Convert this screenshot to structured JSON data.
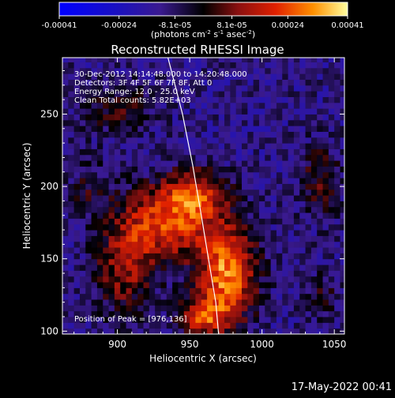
{
  "chart_data": {
    "type": "heatmap",
    "title": "Reconstructed RHESSI Image",
    "xlabel": "Heliocentric X (arcsec)",
    "ylabel": "Heliocentric Y (arcsec)",
    "xlim": [
      862,
      1057
    ],
    "ylim": [
      98,
      289
    ],
    "x_ticks": [
      900,
      950,
      1000,
      1050
    ],
    "y_ticks": [
      100,
      150,
      200,
      250
    ],
    "grid": false,
    "colorbar": {
      "min": -0.00041,
      "max": 0.00041,
      "ticks": [
        {
          "value": -0.00041,
          "label": "-0.00041"
        },
        {
          "value": -0.00024,
          "label": "-0.00024"
        },
        {
          "value": -8.1e-05,
          "label": "-8.1e-05"
        },
        {
          "value": 8.1e-05,
          "label": "8.1e-05"
        },
        {
          "value": 0.00024,
          "label": "0.00024"
        },
        {
          "value": 0.00041,
          "label": "0.00041"
        }
      ],
      "unit_label": "(photons cm",
      "unit_sup1": "-2",
      "unit_mid": " s",
      "unit_sup2": "-1",
      "unit_end": " asec",
      "unit_sup3": "-2",
      "unit_close": ")"
    },
    "info_lines": [
      "30-Dec-2012 14:14:48.000 to 14:20:48.000",
      "Detectors: 3F 4F 5F 6F 7F 8F, Att 0",
      "Energy Range: 12.0 - 25.0 keV",
      "Clean     Total counts: 5.82E+03"
    ],
    "peak_label": "Position of Peak = [976,136]",
    "peak": {
      "x": 976,
      "y": 136
    },
    "limb_curve": {
      "x": [
        935,
        945,
        952,
        958,
        963,
        968,
        970
      ],
      "y": [
        289,
        250,
        215,
        180,
        150,
        120,
        98
      ]
    },
    "sources": [
      {
        "x": 976,
        "y": 140,
        "amp": 0.00041,
        "sx": 14,
        "sy": 22
      },
      {
        "x": 935,
        "y": 175,
        "amp": 0.00033,
        "sx": 22,
        "sy": 18
      },
      {
        "x": 955,
        "y": 195,
        "amp": 0.00025,
        "sx": 16,
        "sy": 12
      },
      {
        "x": 905,
        "y": 145,
        "amp": 0.00022,
        "sx": 14,
        "sy": 24
      },
      {
        "x": 960,
        "y": 110,
        "amp": 0.0003,
        "sx": 12,
        "sy": 10
      },
      {
        "x": 900,
        "y": 255,
        "amp": 0.00014,
        "sx": 18,
        "sy": 12
      },
      {
        "x": 1040,
        "y": 205,
        "amp": 0.00015,
        "sx": 10,
        "sy": 18
      },
      {
        "x": 1040,
        "y": 125,
        "amp": 0.0001,
        "sx": 10,
        "sy": 12
      },
      {
        "x": 880,
        "y": 200,
        "amp": 0.0001,
        "sx": 10,
        "sy": 14
      }
    ],
    "background_level": -0.00012
  },
  "timestamp": "17-May-2022 00:41"
}
